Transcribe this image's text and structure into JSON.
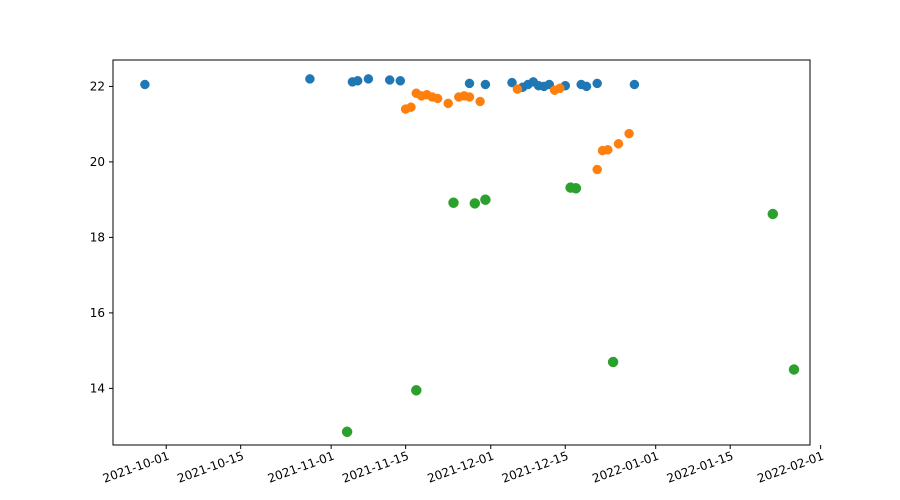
{
  "chart_data": {
    "type": "scatter",
    "title": "",
    "xlabel": "",
    "ylabel": "",
    "x_axis": "date",
    "xlim": [
      "2021-09-21",
      "2022-01-30"
    ],
    "ylim": [
      12.5,
      22.7
    ],
    "grid": false,
    "legend": "none",
    "x_ticks": [
      "2021-10-01",
      "2021-10-15",
      "2021-11-01",
      "2021-11-15",
      "2021-12-01",
      "2021-12-15",
      "2022-01-01",
      "2022-01-15",
      "2022-02-01"
    ],
    "y_ticks": [
      14,
      16,
      18,
      20,
      22
    ],
    "series": [
      {
        "color": "#1f77b4",
        "points": [
          [
            "2021-09-27",
            22.05
          ],
          [
            "2021-10-28",
            22.2
          ],
          [
            "2021-11-05",
            22.12
          ],
          [
            "2021-11-06",
            22.15
          ],
          [
            "2021-11-08",
            22.2
          ],
          [
            "2021-11-12",
            22.17
          ],
          [
            "2021-11-14",
            22.15
          ],
          [
            "2021-11-27",
            22.08
          ],
          [
            "2021-11-30",
            22.05
          ],
          [
            "2021-12-05",
            22.1
          ],
          [
            "2021-12-07",
            21.98
          ],
          [
            "2021-12-08",
            22.05
          ],
          [
            "2021-12-09",
            22.12
          ],
          [
            "2021-12-10",
            22.02
          ],
          [
            "2021-12-11",
            22.0
          ],
          [
            "2021-12-12",
            22.05
          ],
          [
            "2021-12-15",
            22.02
          ],
          [
            "2021-12-18",
            22.05
          ],
          [
            "2021-12-19",
            22.0
          ],
          [
            "2021-12-21",
            22.08
          ],
          [
            "2021-12-28",
            22.05
          ]
        ]
      },
      {
        "color": "#ff7f0e",
        "points": [
          [
            "2021-11-15",
            21.4
          ],
          [
            "2021-11-16",
            21.45
          ],
          [
            "2021-11-17",
            21.82
          ],
          [
            "2021-11-18",
            21.75
          ],
          [
            "2021-11-19",
            21.78
          ],
          [
            "2021-11-20",
            21.72
          ],
          [
            "2021-11-21",
            21.68
          ],
          [
            "2021-11-23",
            21.55
          ],
          [
            "2021-11-25",
            21.72
          ],
          [
            "2021-11-26",
            21.75
          ],
          [
            "2021-11-27",
            21.72
          ],
          [
            "2021-11-29",
            21.6
          ],
          [
            "2021-12-06",
            21.93
          ],
          [
            "2021-12-13",
            21.9
          ],
          [
            "2021-12-14",
            21.95
          ],
          [
            "2021-12-21",
            19.8
          ],
          [
            "2021-12-22",
            20.3
          ],
          [
            "2021-12-23",
            20.32
          ],
          [
            "2021-12-25",
            20.48
          ],
          [
            "2021-12-27",
            20.75
          ]
        ]
      },
      {
        "color": "#2ca02c",
        "points": [
          [
            "2021-11-04",
            12.85
          ],
          [
            "2021-11-17",
            13.95
          ],
          [
            "2021-11-24",
            18.92
          ],
          [
            "2021-11-28",
            18.9
          ],
          [
            "2021-11-30",
            19.0
          ],
          [
            "2021-12-16",
            19.32
          ],
          [
            "2021-12-17",
            19.3
          ],
          [
            "2021-12-24",
            14.7
          ],
          [
            "2022-01-23",
            18.62
          ],
          [
            "2022-01-27",
            14.5
          ]
        ]
      }
    ]
  }
}
